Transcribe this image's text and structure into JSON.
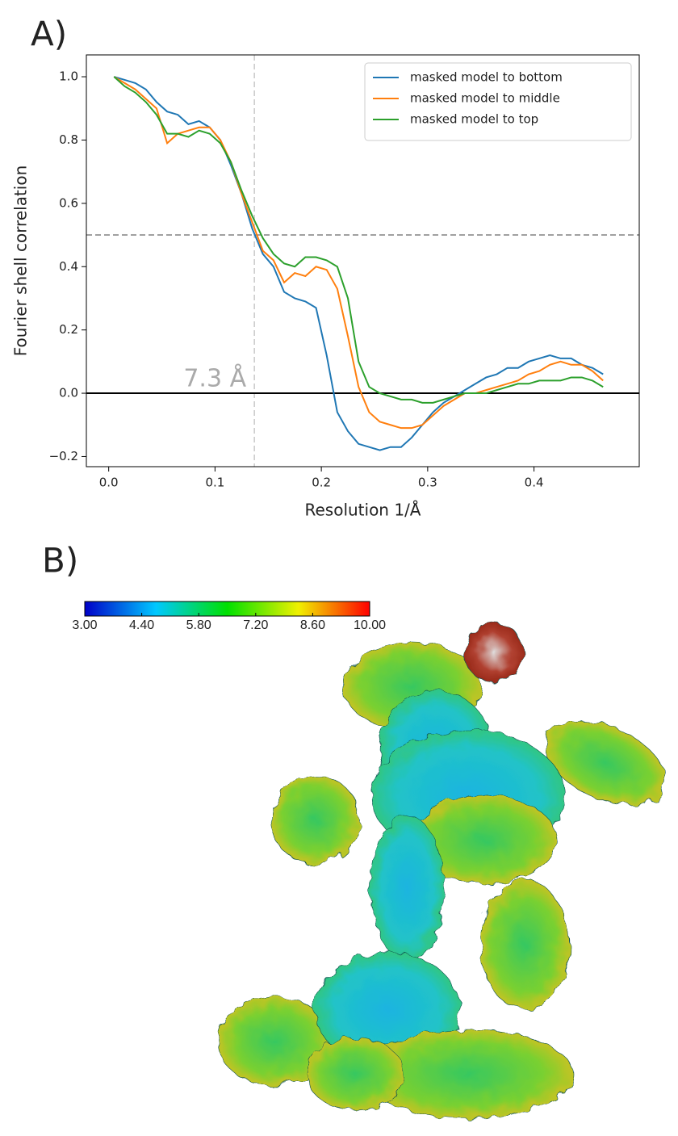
{
  "panel_labels": [
    "A)",
    "B)"
  ],
  "chart_data": [
    {
      "type": "line",
      "xlabel": "Resolution 1/Å",
      "ylabel": "Fourier shell correlation",
      "annotation": "7.3 Å",
      "x": [
        0.005,
        0.015,
        0.025,
        0.035,
        0.045,
        0.055,
        0.065,
        0.075,
        0.085,
        0.095,
        0.105,
        0.115,
        0.125,
        0.135,
        0.145,
        0.155,
        0.165,
        0.175,
        0.185,
        0.195,
        0.205,
        0.215,
        0.225,
        0.235,
        0.245,
        0.255,
        0.265,
        0.275,
        0.285,
        0.295,
        0.305,
        0.315,
        0.325,
        0.335,
        0.345,
        0.355,
        0.365,
        0.375,
        0.385,
        0.395,
        0.405,
        0.415,
        0.425,
        0.435,
        0.445,
        0.455,
        0.465
      ],
      "series": [
        {
          "name": "masked model to bottom",
          "color": "#1f77b4",
          "values": [
            1.0,
            0.99,
            0.98,
            0.96,
            0.92,
            0.89,
            0.88,
            0.85,
            0.86,
            0.84,
            0.8,
            0.72,
            0.63,
            0.52,
            0.44,
            0.4,
            0.32,
            0.3,
            0.29,
            0.27,
            0.12,
            -0.06,
            -0.12,
            -0.16,
            -0.17,
            -0.18,
            -0.17,
            -0.17,
            -0.14,
            -0.1,
            -0.06,
            -0.03,
            -0.01,
            0.01,
            0.03,
            0.05,
            0.06,
            0.08,
            0.08,
            0.1,
            0.11,
            0.12,
            0.11,
            0.11,
            0.09,
            0.08,
            0.06
          ]
        },
        {
          "name": "masked model to middle",
          "color": "#ff7f0e",
          "values": [
            1.0,
            0.98,
            0.96,
            0.93,
            0.9,
            0.79,
            0.82,
            0.83,
            0.84,
            0.84,
            0.8,
            0.73,
            0.63,
            0.54,
            0.45,
            0.42,
            0.35,
            0.38,
            0.37,
            0.4,
            0.39,
            0.33,
            0.18,
            0.02,
            -0.06,
            -0.09,
            -0.1,
            -0.11,
            -0.11,
            -0.1,
            -0.07,
            -0.04,
            -0.02,
            0.0,
            0.0,
            0.01,
            0.02,
            0.03,
            0.04,
            0.06,
            0.07,
            0.09,
            0.1,
            0.09,
            0.09,
            0.07,
            0.04
          ]
        },
        {
          "name": "masked model to top",
          "color": "#2ca02c",
          "values": [
            1.0,
            0.97,
            0.95,
            0.92,
            0.88,
            0.82,
            0.82,
            0.81,
            0.83,
            0.82,
            0.79,
            0.73,
            0.64,
            0.56,
            0.49,
            0.44,
            0.41,
            0.4,
            0.43,
            0.43,
            0.42,
            0.4,
            0.3,
            0.1,
            0.02,
            0.0,
            -0.01,
            -0.02,
            -0.02,
            -0.03,
            -0.03,
            -0.02,
            -0.01,
            0.0,
            0.0,
            0.0,
            0.01,
            0.02,
            0.03,
            0.03,
            0.04,
            0.04,
            0.04,
            0.05,
            0.05,
            0.04,
            0.02
          ]
        }
      ],
      "xlim": [
        -0.021,
        0.499
      ],
      "ylim": [
        -0.232,
        1.069
      ],
      "xticks": [
        {
          "value": 0,
          "label": "0.0"
        },
        0.1,
        0.2,
        0.3,
        0.4
      ],
      "yticks": [
        {
          "value": -0.2,
          "label": "−0.2"
        },
        {
          "value": 0,
          "label": "0.0"
        },
        0.2,
        0.4,
        0.6,
        0.8,
        {
          "value": 1,
          "label": "1.0"
        }
      ],
      "hlines": [
        {
          "value": 0.5,
          "color": "#808080",
          "style": "dashed"
        },
        {
          "value": 0,
          "color": "#000000",
          "style": "solid"
        }
      ],
      "vlines": [
        {
          "value": 0.137,
          "color": "#c8c8c8",
          "style": "dashed"
        }
      ],
      "legend": "upper right"
    },
    {
      "type": "colorbar",
      "clim": [
        3,
        10
      ],
      "colors": [
        "#0000c8",
        "#00c8ff",
        "#00e000",
        "#f0f000",
        "#ff0000"
      ],
      "ticks": [
        {
          "value": 3,
          "label": "3.00"
        },
        {
          "value": 4.4,
          "label": "4.40"
        },
        {
          "value": 5.8,
          "label": "5.80"
        },
        {
          "value": 7.2,
          "label": "7.20"
        },
        {
          "value": 8.6,
          "label": "8.60"
        },
        {
          "value": 10,
          "label": "10.00"
        }
      ]
    }
  ]
}
